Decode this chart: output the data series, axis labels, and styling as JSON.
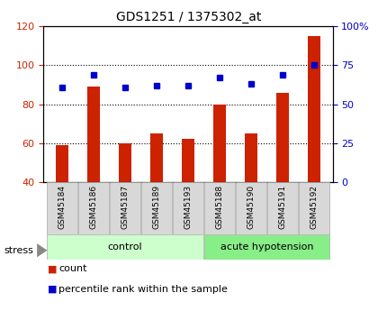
{
  "title": "GDS1251 / 1375302_at",
  "samples": [
    "GSM45184",
    "GSM45186",
    "GSM45187",
    "GSM45189",
    "GSM45193",
    "GSM45188",
    "GSM45190",
    "GSM45191",
    "GSM45192"
  ],
  "counts": [
    59,
    89,
    60,
    65,
    62,
    80,
    65,
    86,
    115
  ],
  "percentiles": [
    61,
    69,
    61,
    62,
    62,
    67,
    63,
    69,
    75
  ],
  "groups": [
    "control",
    "control",
    "control",
    "control",
    "control",
    "acute hypotension",
    "acute hypotension",
    "acute hypotension",
    "acute hypotension"
  ],
  "bar_color": "#cc2200",
  "dot_color": "#0000cc",
  "left_ylim": [
    40,
    120
  ],
  "left_yticks": [
    40,
    60,
    80,
    100,
    120
  ],
  "right_ylim": [
    0,
    100
  ],
  "right_yticks": [
    0,
    25,
    50,
    75,
    100
  ],
  "right_yticklabels": [
    "0",
    "25",
    "50",
    "75",
    "100%"
  ],
  "title_fontsize": 10,
  "tick_label_color_left": "#cc2200",
  "tick_label_color_right": "#0000cc",
  "sample_bg_color": "#d8d8d8",
  "control_color": "#ccffcc",
  "hypo_color": "#88ee88"
}
